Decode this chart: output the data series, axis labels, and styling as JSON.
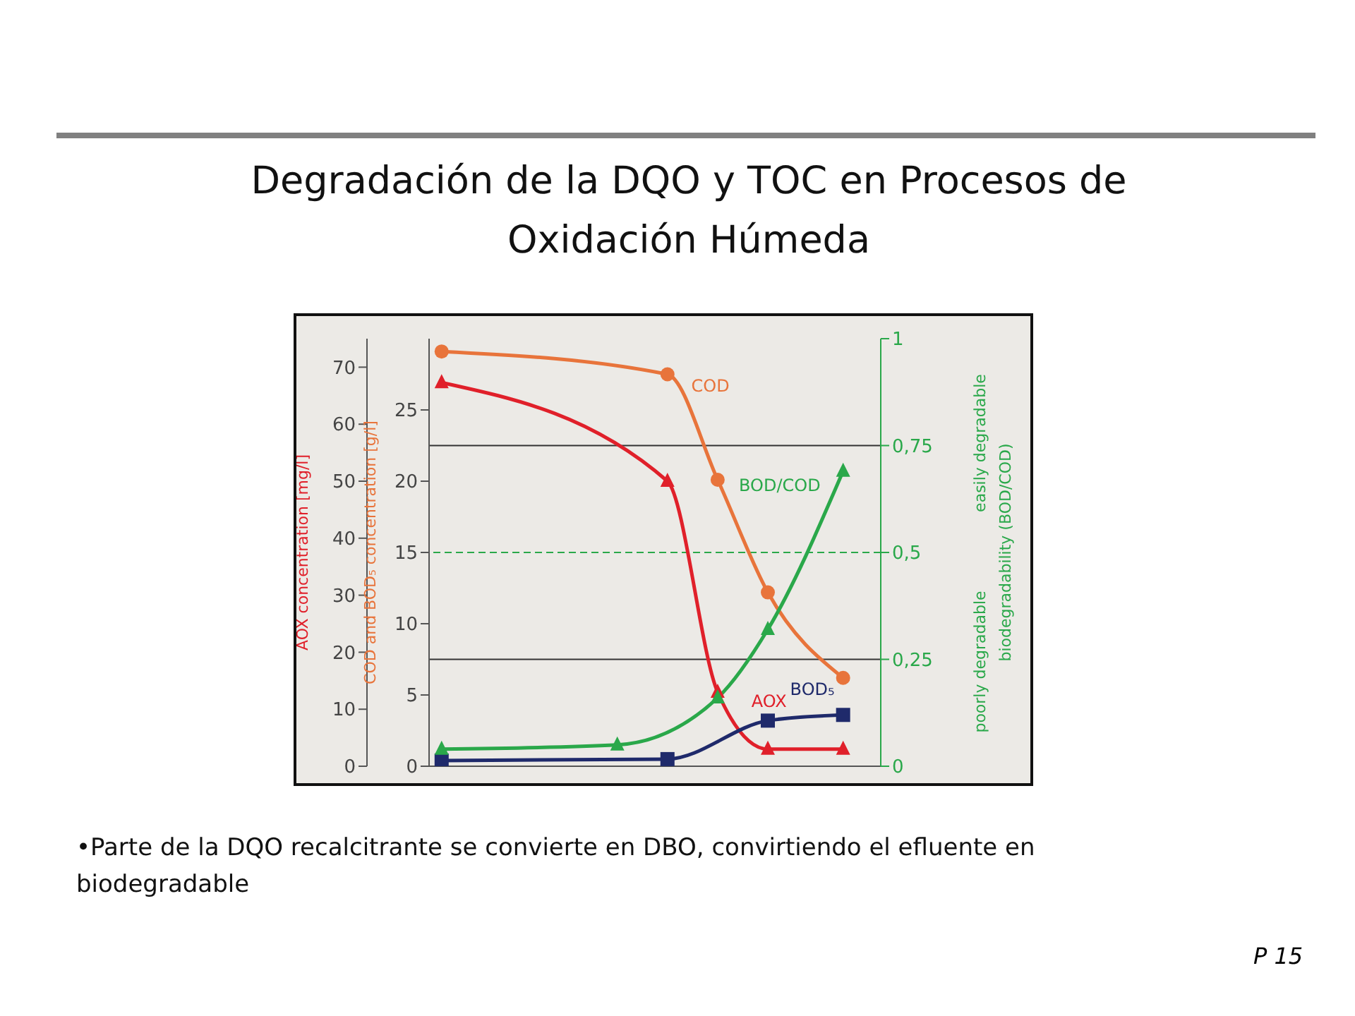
{
  "chart_data": {
    "type": "line",
    "title": "Degradación de la DQO y TOC en Procesos de Oxidación Húmeda",
    "categories": [
      null,
      null,
      null,
      null,
      null,
      null,
      null,
      null,
      null,
      null,
      null,
      null,
      null,
      null,
      null,
      null,
      null,
      null
    ],
    "series": [
      {
        "name": "COD",
        "color": "#e8743b",
        "marker": "circle",
        "values": [
          29.1,
          null,
          null,
          null,
          null,
          null,
          null,
          null,
          null,
          27.5,
          null,
          20.1,
          null,
          12.2,
          null,
          null,
          6.2,
          null
        ]
      },
      {
        "name": "AOX",
        "color": "#e0202a",
        "marker": "triangle",
        "axis": "y3",
        "values": [
          67.3,
          null,
          null,
          null,
          null,
          null,
          null,
          null,
          null,
          50,
          null,
          13,
          null,
          3,
          null,
          null,
          3,
          null
        ]
      },
      {
        "name": "BOD₅",
        "color": "#1f2a6b",
        "marker": "square",
        "values": [
          0.4,
          null,
          null,
          null,
          null,
          null,
          null,
          null,
          null,
          0.5,
          null,
          null,
          null,
          3.2,
          null,
          null,
          3.6,
          null
        ]
      },
      {
        "name": "BOD/COD",
        "color": "#2aa84a",
        "marker": "triangle",
        "axis": "y2",
        "values": [
          0.04,
          null,
          null,
          null,
          null,
          null,
          null,
          0.05,
          null,
          null,
          null,
          0.16,
          null,
          0.32,
          null,
          null,
          0.69,
          null
        ]
      }
    ],
    "ylabel": "COD and BOD₅ concentration [g/l]",
    "ylim": [
      0,
      30
    ],
    "yticks": [
      0,
      5,
      10,
      15,
      20,
      25
    ],
    "y3label": "AOX concentration [mg/l]",
    "y3lim": [
      0,
      75
    ],
    "y3ticks": [
      0,
      10,
      20,
      30,
      40,
      50,
      60,
      70
    ],
    "y2label": "biodegradability (BOD/COD)",
    "y2lim": [
      0,
      1
    ],
    "y2ticks": [
      0,
      {
        "value": 0.25,
        "label": "0,25"
      },
      {
        "value": 0.5,
        "label": "0,5"
      },
      {
        "value": 0.75,
        "label": "0,75"
      },
      1
    ],
    "ref_lines": [
      {
        "axis": "y2",
        "value": 0.75,
        "color": "#333333",
        "line_style": "solid"
      },
      {
        "axis": "y2",
        "value": 0.5,
        "color": "#2aa84a",
        "line_style": "dashed"
      },
      {
        "axis": "y2",
        "value": 0.25,
        "color": "#333333",
        "line_style": "solid"
      }
    ],
    "annotations": [
      "easily degradable",
      "poorly degradable",
      "•Parte de la DQO recalcitrante se convierte en DBO, convirtiendo el efluente en biodegradable",
      "P 15"
    ],
    "tick_labels": "y",
    "legend": false,
    "line_style": "solid"
  }
}
